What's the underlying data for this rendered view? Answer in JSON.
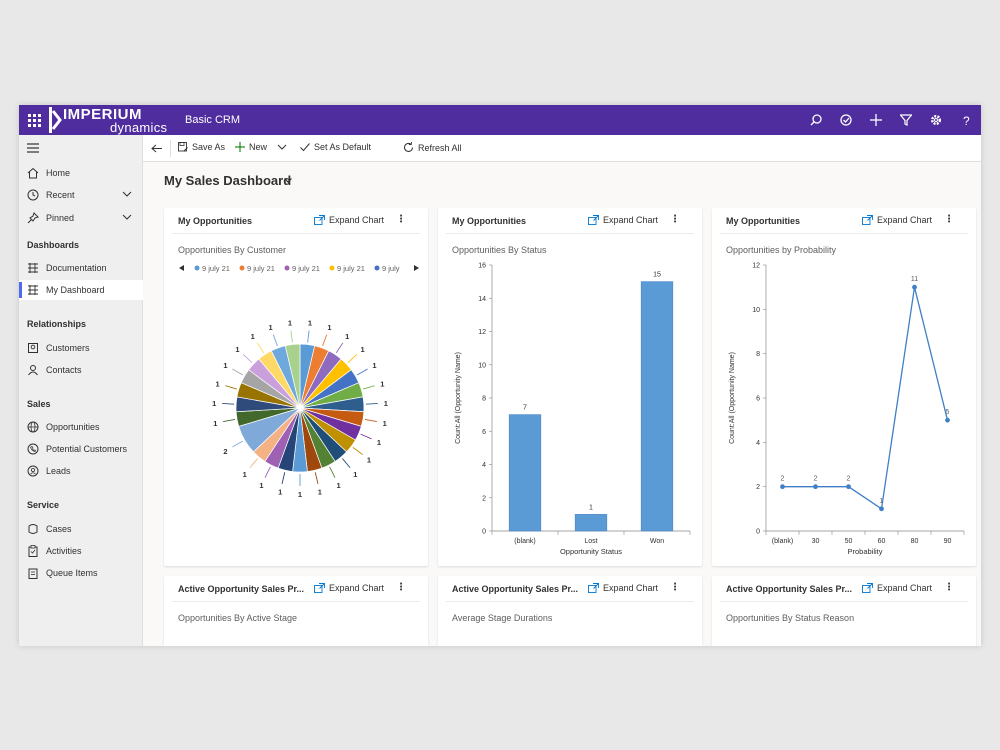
{
  "header": {
    "logo_primary": "IMPERIUM",
    "logo_secondary": "dynamics",
    "app_title": "Basic CRM"
  },
  "sidebar": {
    "top_items": [
      {
        "label": "Home",
        "icon": "home-icon"
      },
      {
        "label": "Recent",
        "icon": "clock-icon"
      },
      {
        "label": "Pinned",
        "icon": "pin-icon"
      }
    ],
    "groups": [
      {
        "title": "Dashboards",
        "items": [
          {
            "label": "Documentation"
          },
          {
            "label": "My Dashboard",
            "active": true
          }
        ]
      },
      {
        "title": "Relationships",
        "items": [
          {
            "label": "Customers"
          },
          {
            "label": "Contacts"
          }
        ]
      },
      {
        "title": "Sales",
        "items": [
          {
            "label": "Opportunities"
          },
          {
            "label": "Potential Customers"
          },
          {
            "label": "Leads"
          }
        ]
      },
      {
        "title": "Service",
        "items": [
          {
            "label": "Cases"
          },
          {
            "label": "Activities"
          },
          {
            "label": "Queue Items"
          }
        ]
      }
    ]
  },
  "commands": {
    "save_as": "Save As",
    "new": "New",
    "set_default": "Set As Default",
    "refresh_all": "Refresh All"
  },
  "dashboard": {
    "title": "My Sales Dashboard"
  },
  "cards": [
    {
      "title": "My Opportunities",
      "subtitle": "Opportunities By Customer",
      "expand": "Expand Chart"
    },
    {
      "title": "My Opportunities",
      "subtitle": "Opportunities By Status",
      "expand": "Expand Chart"
    },
    {
      "title": "My Opportunities",
      "subtitle": "Opportunities by Probability",
      "expand": "Expand Chart"
    },
    {
      "title": "Active Opportunity Sales Pr...",
      "subtitle": "Opportunities By Active Stage",
      "expand": "Expand Chart"
    },
    {
      "title": "Active Opportunity Sales Pr...",
      "subtitle": "Average Stage Durations",
      "expand": "Expand Chart"
    },
    {
      "title": "Active Opportunity Sales Pr...",
      "subtitle": "Opportunities By Status Reason",
      "expand": "Expand Chart"
    }
  ],
  "chart_data": [
    {
      "type": "pie",
      "legend": [
        "9 july 21",
        "9 july 21",
        "9 july 21",
        "9 july 21",
        "9 july"
      ],
      "legend_colors": [
        "#5b9bd5",
        "#ed7d31",
        "#9e61b4",
        "#ffc000",
        "#4472c4"
      ],
      "values": [
        1,
        1,
        1,
        1,
        1,
        1,
        1,
        1,
        1,
        1,
        1,
        1,
        1,
        1,
        1,
        1,
        1,
        2,
        1,
        1,
        1,
        1,
        1,
        1,
        1,
        1
      ],
      "colors": [
        "#5b9bd5",
        "#ed7d31",
        "#8e6bbf",
        "#ffc000",
        "#4472c4",
        "#70ad47",
        "#2e5e8e",
        "#c55a11",
        "#7030a0",
        "#bf9000",
        "#1f4e79",
        "#548235",
        "#9e480e",
        "#5b9bd5",
        "#264478",
        "#9e61b4",
        "#f4b183",
        "#7fa9d9",
        "#43682b",
        "#2f4b7c",
        "#997300",
        "#a5a5a5",
        "#c9a0dc",
        "#ffd966",
        "#6fa8dc",
        "#a9d18e"
      ]
    },
    {
      "type": "bar",
      "categories": [
        "(blank)",
        "Lost",
        "Won"
      ],
      "values": [
        7,
        1,
        15
      ],
      "xlabel": "Opportunity Status",
      "ylabel": "Count:All (Opportunity Name)",
      "ylim": [
        0,
        16
      ],
      "yticks": [
        "0",
        "2",
        "4",
        "6",
        "8",
        "10",
        "12",
        "14",
        "16"
      ]
    },
    {
      "type": "line",
      "categories": [
        "(blank)",
        "30",
        "50",
        "60",
        "80",
        "90"
      ],
      "values": [
        2,
        2,
        2,
        1,
        11,
        5
      ],
      "xlabel": "Probability",
      "ylabel": "Count:All (Opportunity Name)",
      "ylim": [
        0,
        12
      ],
      "yticks": [
        "0",
        "2",
        "4",
        "6",
        "8",
        "10",
        "12"
      ]
    }
  ]
}
